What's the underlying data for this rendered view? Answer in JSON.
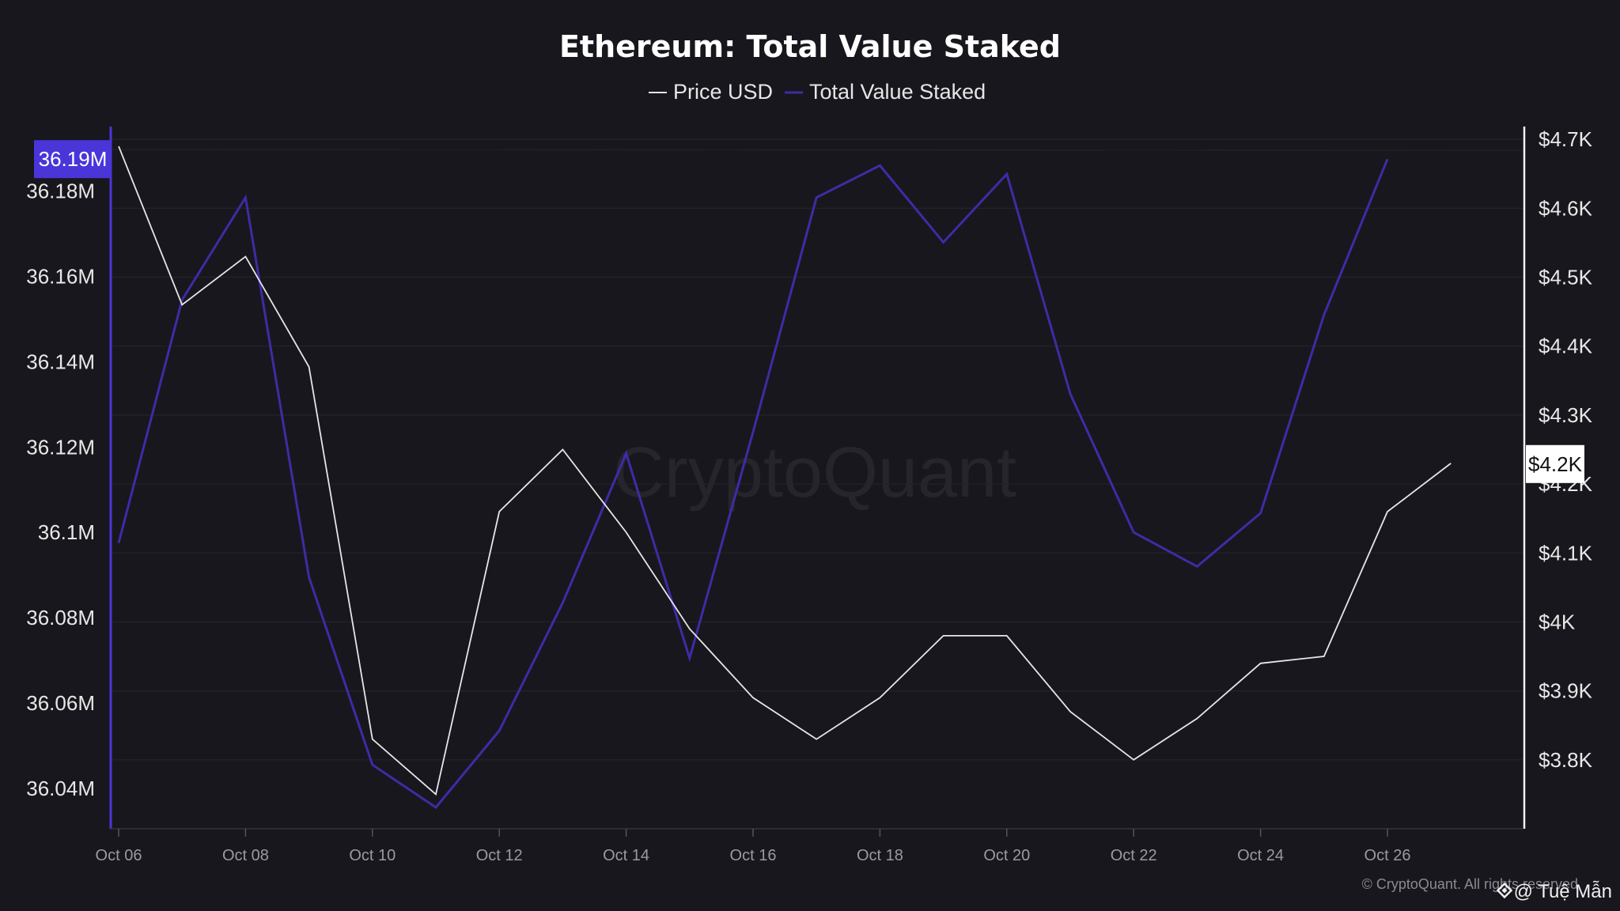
{
  "chart_data": {
    "type": "line",
    "title": "Ethereum: Total Value Staked",
    "x": [
      "Oct 06",
      "Oct 07",
      "Oct 08",
      "Oct 09",
      "Oct 10",
      "Oct 11",
      "Oct 12",
      "Oct 13",
      "Oct 14",
      "Oct 15",
      "Oct 16",
      "Oct 17",
      "Oct 18",
      "Oct 19",
      "Oct 20",
      "Oct 21",
      "Oct 22",
      "Oct 23",
      "Oct 24",
      "Oct 25",
      "Oct 26",
      "Oct 27"
    ],
    "x_ticks": [
      "Oct 06",
      "Oct 08",
      "Oct 10",
      "Oct 12",
      "Oct 14",
      "Oct 16",
      "Oct 18",
      "Oct 20",
      "Oct 22",
      "Oct 24",
      "Oct 26"
    ],
    "series": [
      {
        "name": "Price USD",
        "axis": "right",
        "color": "#e6e6e6",
        "values": [
          4690,
          4460,
          4530,
          4370,
          3830,
          3750,
          4160,
          4250,
          4130,
          3990,
          3890,
          3830,
          3890,
          3980,
          3980,
          3870,
          3800,
          3860,
          3940,
          3950,
          4160,
          4230
        ]
      },
      {
        "name": "Total Value Staked",
        "axis": "left",
        "color": "#3d2ca6",
        "values": [
          36.0975,
          36.1545,
          36.1785,
          36.0895,
          36.0455,
          36.0355,
          36.0535,
          36.0835,
          36.1185,
          36.0705,
          36.1235,
          36.1785,
          36.186,
          36.168,
          36.184,
          36.1325,
          36.1,
          36.092,
          36.1045,
          36.151,
          36.1875,
          null
        ]
      }
    ],
    "y_left": {
      "ticks": [
        "36.04M",
        "36.06M",
        "36.08M",
        "36.1M",
        "36.12M",
        "36.14M",
        "36.16M",
        "36.18M"
      ],
      "tick_values": [
        36.04,
        36.06,
        36.08,
        36.1,
        36.12,
        36.14,
        36.16,
        36.18
      ],
      "range": [
        36.0305,
        36.197
      ],
      "highlight_label": "36.19M",
      "highlight_value": 36.1875,
      "highlight_color": "#4a35d9"
    },
    "y_right": {
      "ticks": [
        "$3.8K",
        "$3.9K",
        "$4K",
        "$4.1K",
        "$4.2K",
        "$4.3K",
        "$4.4K",
        "$4.5K",
        "$4.6K",
        "$4.7K"
      ],
      "tick_values": [
        3800,
        3900,
        4000,
        4100,
        4200,
        4300,
        4400,
        4500,
        4600,
        4700
      ],
      "range": [
        3700,
        4730
      ],
      "highlight_label": "$4.2K",
      "highlight_value": 4229
    },
    "legend": {
      "placement": "top-center",
      "entries": [
        "Price USD",
        "Total Value Staked"
      ]
    },
    "grid": true,
    "watermark": "CryptoQuant",
    "footer": "© CryptoQuant. All rights reserved",
    "handle": "@ Tuệ Mẫn"
  }
}
